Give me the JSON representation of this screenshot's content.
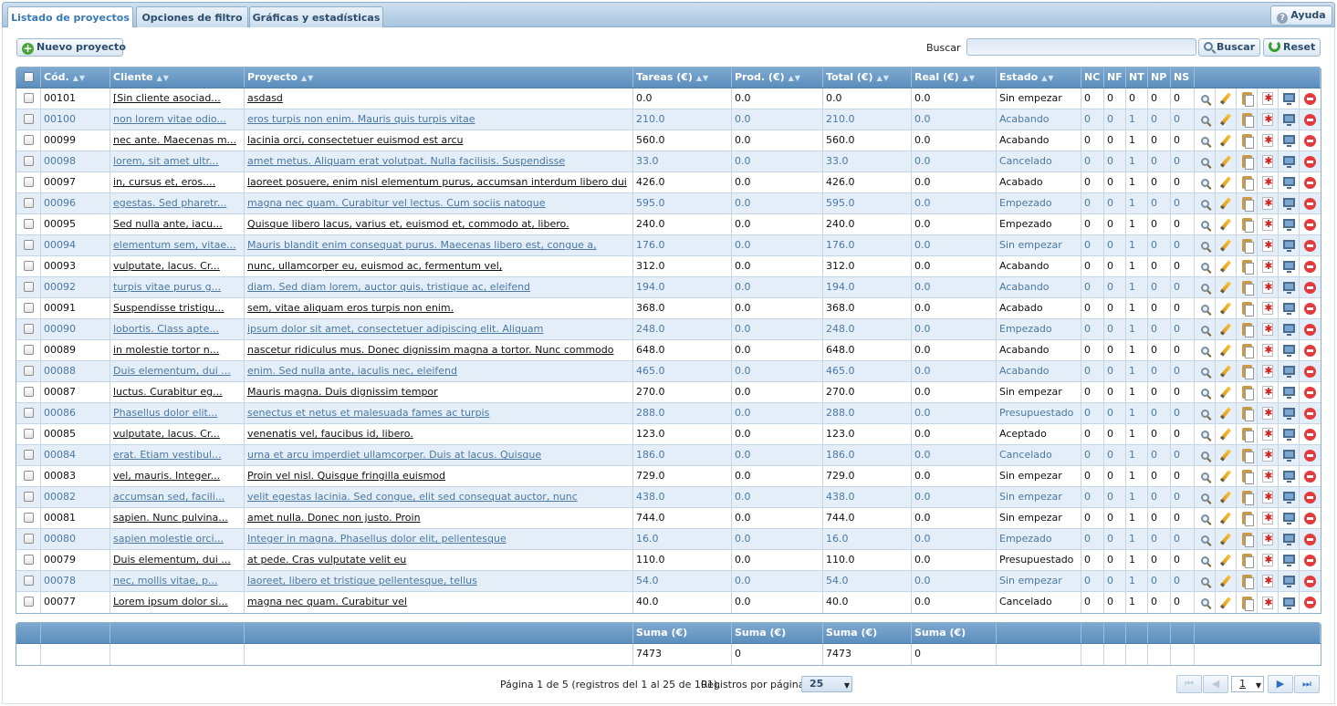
{
  "tabs": [
    {
      "label": "Listado de proyectos",
      "active": true
    },
    {
      "label": "Opciones de filtro",
      "active": false
    },
    {
      "label": "Gráficas y estadísticas",
      "active": false
    }
  ],
  "help_label": "Ayuda",
  "toolbar": {
    "new_label": "Nuevo proyecto",
    "search_label": "Buscar",
    "search_value": "",
    "search_button": "Buscar",
    "reset_button": "Reset"
  },
  "columns": [
    "Cód.",
    "Cliente",
    "Proyecto",
    "Tareas (€)",
    "Prod. (€)",
    "Total (€)",
    "Real (€)",
    "Estado",
    "NC",
    "NF",
    "NT",
    "NP",
    "NS"
  ],
  "rows": [
    {
      "code": "00101",
      "client": "[Sin cliente asociad...",
      "project": "asdasd",
      "tareas": "0.0",
      "prod": "0.0",
      "total": "0.0",
      "real": "0.0",
      "estado": "Sin empezar",
      "nc": "0",
      "nf": "0",
      "nt": "0",
      "np": "0",
      "ns": "0"
    },
    {
      "code": "00100",
      "client": "non lorem vitae odio...",
      "project": "eros turpis non enim. Mauris quis turpis vitae",
      "tareas": "210.0",
      "prod": "0.0",
      "total": "210.0",
      "real": "0.0",
      "estado": "Acabando",
      "nc": "0",
      "nf": "0",
      "nt": "1",
      "np": "0",
      "ns": "0"
    },
    {
      "code": "00099",
      "client": "nec ante. Maecenas m...",
      "project": "lacinia orci, consectetuer euismod est arcu",
      "tareas": "560.0",
      "prod": "0.0",
      "total": "560.0",
      "real": "0.0",
      "estado": "Acabando",
      "nc": "0",
      "nf": "0",
      "nt": "1",
      "np": "0",
      "ns": "0"
    },
    {
      "code": "00098",
      "client": "lorem, sit amet ultr...",
      "project": "amet metus. Aliquam erat volutpat. Nulla facilisis. Suspendisse",
      "tareas": "33.0",
      "prod": "0.0",
      "total": "33.0",
      "real": "0.0",
      "estado": "Cancelado",
      "nc": "0",
      "nf": "0",
      "nt": "1",
      "np": "0",
      "ns": "0"
    },
    {
      "code": "00097",
      "client": "in, cursus et, eros....",
      "project": "laoreet posuere, enim nisl elementum purus, accumsan interdum libero dui",
      "tareas": "426.0",
      "prod": "0.0",
      "total": "426.0",
      "real": "0.0",
      "estado": "Acabado",
      "nc": "0",
      "nf": "0",
      "nt": "1",
      "np": "0",
      "ns": "0"
    },
    {
      "code": "00096",
      "client": "egestas. Sed pharetr...",
      "project": "magna nec quam. Curabitur vel lectus. Cum sociis natoque",
      "tareas": "595.0",
      "prod": "0.0",
      "total": "595.0",
      "real": "0.0",
      "estado": "Empezado",
      "nc": "0",
      "nf": "0",
      "nt": "1",
      "np": "0",
      "ns": "0"
    },
    {
      "code": "00095",
      "client": "Sed nulla ante, iacu...",
      "project": "Quisque libero lacus, varius et, euismod et, commodo at, libero.",
      "tareas": "240.0",
      "prod": "0.0",
      "total": "240.0",
      "real": "0.0",
      "estado": "Empezado",
      "nc": "0",
      "nf": "0",
      "nt": "1",
      "np": "0",
      "ns": "0"
    },
    {
      "code": "00094",
      "client": "elementum sem, vitae...",
      "project": "Mauris blandit enim consequat purus. Maecenas libero est, congue a,",
      "tareas": "176.0",
      "prod": "0.0",
      "total": "176.0",
      "real": "0.0",
      "estado": "Sin empezar",
      "nc": "0",
      "nf": "0",
      "nt": "1",
      "np": "0",
      "ns": "0"
    },
    {
      "code": "00093",
      "client": "vulputate, lacus. Cr...",
      "project": "nunc, ullamcorper eu, euismod ac, fermentum vel,",
      "tareas": "312.0",
      "prod": "0.0",
      "total": "312.0",
      "real": "0.0",
      "estado": "Acabando",
      "nc": "0",
      "nf": "0",
      "nt": "1",
      "np": "0",
      "ns": "0"
    },
    {
      "code": "00092",
      "client": "turpis vitae purus g...",
      "project": "diam. Sed diam lorem, auctor quis, tristique ac, eleifend",
      "tareas": "194.0",
      "prod": "0.0",
      "total": "194.0",
      "real": "0.0",
      "estado": "Acabando",
      "nc": "0",
      "nf": "0",
      "nt": "1",
      "np": "0",
      "ns": "0"
    },
    {
      "code": "00091",
      "client": "Suspendisse tristiqu...",
      "project": "sem, vitae aliquam eros turpis non enim.",
      "tareas": "368.0",
      "prod": "0.0",
      "total": "368.0",
      "real": "0.0",
      "estado": "Acabado",
      "nc": "0",
      "nf": "0",
      "nt": "1",
      "np": "0",
      "ns": "0"
    },
    {
      "code": "00090",
      "client": "lobortis. Class apte...",
      "project": "ipsum dolor sit amet, consectetuer adipiscing elit. Aliquam",
      "tareas": "248.0",
      "prod": "0.0",
      "total": "248.0",
      "real": "0.0",
      "estado": "Empezado",
      "nc": "0",
      "nf": "0",
      "nt": "1",
      "np": "0",
      "ns": "0"
    },
    {
      "code": "00089",
      "client": "in molestie tortor n...",
      "project": "nascetur ridiculus mus. Donec dignissim magna a tortor. Nunc commodo",
      "tareas": "648.0",
      "prod": "0.0",
      "total": "648.0",
      "real": "0.0",
      "estado": "Acabando",
      "nc": "0",
      "nf": "0",
      "nt": "1",
      "np": "0",
      "ns": "0"
    },
    {
      "code": "00088",
      "client": "Duis elementum, dui ...",
      "project": "enim. Sed nulla ante, iaculis nec, eleifend",
      "tareas": "465.0",
      "prod": "0.0",
      "total": "465.0",
      "real": "0.0",
      "estado": "Acabando",
      "nc": "0",
      "nf": "0",
      "nt": "1",
      "np": "0",
      "ns": "0"
    },
    {
      "code": "00087",
      "client": "luctus. Curabitur eg...",
      "project": "Mauris magna. Duis dignissim tempor",
      "tareas": "270.0",
      "prod": "0.0",
      "total": "270.0",
      "real": "0.0",
      "estado": "Sin empezar",
      "nc": "0",
      "nf": "0",
      "nt": "1",
      "np": "0",
      "ns": "0"
    },
    {
      "code": "00086",
      "client": "Phasellus dolor elit...",
      "project": "senectus et netus et malesuada fames ac turpis",
      "tareas": "288.0",
      "prod": "0.0",
      "total": "288.0",
      "real": "0.0",
      "estado": "Presupuestado",
      "nc": "0",
      "nf": "0",
      "nt": "1",
      "np": "0",
      "ns": "0"
    },
    {
      "code": "00085",
      "client": "vulputate, lacus. Cr...",
      "project": "venenatis vel, faucibus id, libero.",
      "tareas": "123.0",
      "prod": "0.0",
      "total": "123.0",
      "real": "0.0",
      "estado": "Aceptado",
      "nc": "0",
      "nf": "0",
      "nt": "1",
      "np": "0",
      "ns": "0"
    },
    {
      "code": "00084",
      "client": "erat. Etiam vestibul...",
      "project": "urna et arcu imperdiet ullamcorper. Duis at lacus. Quisque",
      "tareas": "186.0",
      "prod": "0.0",
      "total": "186.0",
      "real": "0.0",
      "estado": "Cancelado",
      "nc": "0",
      "nf": "0",
      "nt": "1",
      "np": "0",
      "ns": "0"
    },
    {
      "code": "00083",
      "client": "vel, mauris. Integer...",
      "project": "Proin vel nisl. Quisque fringilla euismod",
      "tareas": "729.0",
      "prod": "0.0",
      "total": "729.0",
      "real": "0.0",
      "estado": "Sin empezar",
      "nc": "0",
      "nf": "0",
      "nt": "1",
      "np": "0",
      "ns": "0"
    },
    {
      "code": "00082",
      "client": "accumsan sed, facili...",
      "project": "velit egestas lacinia. Sed congue, elit sed consequat auctor, nunc",
      "tareas": "438.0",
      "prod": "0.0",
      "total": "438.0",
      "real": "0.0",
      "estado": "Sin empezar",
      "nc": "0",
      "nf": "0",
      "nt": "1",
      "np": "0",
      "ns": "0"
    },
    {
      "code": "00081",
      "client": "sapien. Nunc pulvina...",
      "project": "amet nulla. Donec non justo. Proin",
      "tareas": "744.0",
      "prod": "0.0",
      "total": "744.0",
      "real": "0.0",
      "estado": "Sin empezar",
      "nc": "0",
      "nf": "0",
      "nt": "1",
      "np": "0",
      "ns": "0"
    },
    {
      "code": "00080",
      "client": "sapien molestie orci...",
      "project": "Integer in magna. Phasellus dolor elit, pellentesque",
      "tareas": "16.0",
      "prod": "0.0",
      "total": "16.0",
      "real": "0.0",
      "estado": "Empezado",
      "nc": "0",
      "nf": "0",
      "nt": "1",
      "np": "0",
      "ns": "0"
    },
    {
      "code": "00079",
      "client": "Duis elementum, dui ...",
      "project": "at pede. Cras vulputate velit eu",
      "tareas": "110.0",
      "prod": "0.0",
      "total": "110.0",
      "real": "0.0",
      "estado": "Presupuestado",
      "nc": "0",
      "nf": "0",
      "nt": "1",
      "np": "0",
      "ns": "0"
    },
    {
      "code": "00078",
      "client": "nec, mollis vitae, p...",
      "project": "laoreet, libero et tristique pellentesque, tellus",
      "tareas": "54.0",
      "prod": "0.0",
      "total": "54.0",
      "real": "0.0",
      "estado": "Sin empezar",
      "nc": "0",
      "nf": "0",
      "nt": "1",
      "np": "0",
      "ns": "0"
    },
    {
      "code": "00077",
      "client": "Lorem ipsum dolor si...",
      "project": "magna nec quam. Curabitur vel",
      "tareas": "40.0",
      "prod": "0.0",
      "total": "40.0",
      "real": "0.0",
      "estado": "Cancelado",
      "nc": "0",
      "nf": "0",
      "nt": "1",
      "np": "0",
      "ns": "0"
    }
  ],
  "summary": {
    "header_label": "Suma (€)",
    "tareas": "7473",
    "prod": "0",
    "total": "7473",
    "real": "0"
  },
  "footer": {
    "page_info": "Página 1 de 5 (registros del 1 al 25 de 101).",
    "per_page_label": "Registros por página:",
    "per_page_value": "25",
    "current_page": "1"
  },
  "icons": {
    "row_actions": [
      "zoom-icon",
      "edit-pencil-icon",
      "copy-clipboard-icon",
      "pdf-icon",
      "monitor-icon",
      "delete-icon"
    ]
  }
}
